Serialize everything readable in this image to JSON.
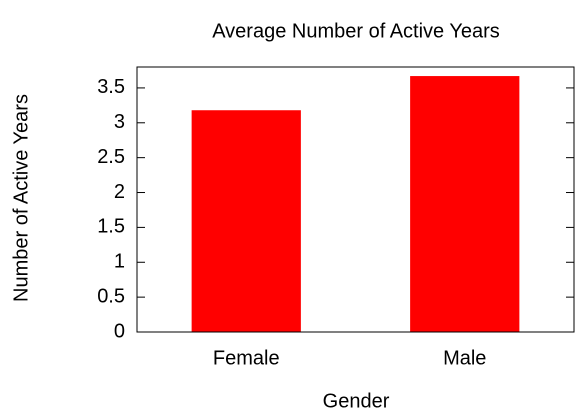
{
  "chart_data": {
    "type": "bar",
    "title": "Average Number of Active Years",
    "x_label": "Gender",
    "y_label": "Number of Active Years",
    "categories": [
      "Female",
      "Male"
    ],
    "values": [
      3.18,
      3.67
    ],
    "color": "#ff0000",
    "ylim": [
      0,
      3.8
    ],
    "yticks": [
      0,
      0.5,
      1,
      1.5,
      2,
      2.5,
      3,
      3.5
    ]
  }
}
